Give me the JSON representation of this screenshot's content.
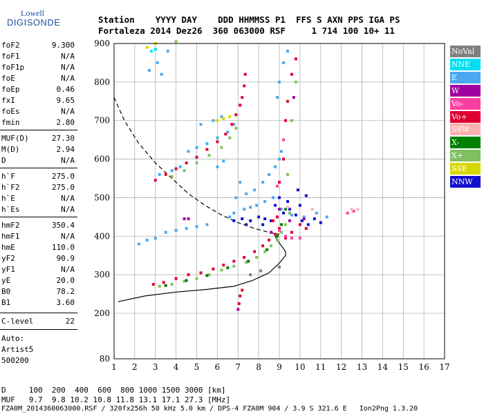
{
  "logo": {
    "line1": "Lowell",
    "line2": "DIGISONDE"
  },
  "header": {
    "row1": "Station    YYYY DAY    DDD HHMMSS P1  FFS S AXN PPS IGA PS",
    "row2": "Fortaleza 2014 Dez26  360 063000 RSF     1 714 100 10+ 11"
  },
  "params": [
    {
      "k": "foF2",
      "v": "9.300"
    },
    {
      "k": "foF1",
      "v": "N/A"
    },
    {
      "k": "foF1p",
      "v": "N/A"
    },
    {
      "k": "foE",
      "v": "N/A"
    },
    {
      "k": "foEp",
      "v": "0.46"
    },
    {
      "k": "fxI",
      "v": "9.65"
    },
    {
      "k": "foEs",
      "v": "N/A"
    },
    {
      "k": "fmin",
      "v": "2.80"
    },
    {
      "k": "MUF(D)",
      "v": "27.30"
    },
    {
      "k": "M(D)",
      "v": "2.94"
    },
    {
      "k": "D",
      "v": "N/A"
    },
    {
      "k": "h`F",
      "v": "275.0"
    },
    {
      "k": "h`F2",
      "v": "275.0"
    },
    {
      "k": "h`E",
      "v": "N/A"
    },
    {
      "k": "h`Es",
      "v": "N/A"
    },
    {
      "k": "hmF2",
      "v": "350.4"
    },
    {
      "k": "hmF1",
      "v": "N/A"
    },
    {
      "k": "hmE",
      "v": "110.0"
    },
    {
      "k": "yF2",
      "v": "90.9"
    },
    {
      "k": "yF1",
      "v": "N/A"
    },
    {
      "k": "yE",
      "v": "20.0"
    },
    {
      "k": "B0",
      "v": "78.2"
    },
    {
      "k": "B1",
      "v": "3.60"
    },
    {
      "k": "C-level",
      "v": "22"
    }
  ],
  "auto": {
    "line1": "Auto:",
    "line2": "Artist5",
    "line3": "500200"
  },
  "legend": [
    {
      "label": "NoVal",
      "bg": "#808080",
      "fg": "#ffffff"
    },
    {
      "label": "NNE",
      "bg": "#00e0f0",
      "fg": "#ffffff"
    },
    {
      "label": "E",
      "bg": "#4aa8f0",
      "fg": "#ffffff"
    },
    {
      "label": "W",
      "bg": "#a000a0",
      "fg": "#ffffff"
    },
    {
      "label": "Vo-",
      "bg": "#ff40a0",
      "fg": "#ffffff"
    },
    {
      "label": "Vo+",
      "bg": "#e00030",
      "fg": "#ffffff"
    },
    {
      "label": "SSW",
      "bg": "#ffb0b0",
      "fg": "#ffffff"
    },
    {
      "label": "X-",
      "bg": "#008000",
      "fg": "#ffffff"
    },
    {
      "label": "X+",
      "bg": "#80c060",
      "fg": "#ffffff"
    },
    {
      "label": "SSE",
      "bg": "#d8d800",
      "fg": "#ffffff"
    },
    {
      "label": "NNW",
      "bg": "#1010d0",
      "fg": "#ffffff"
    }
  ],
  "footer": {
    "line1": "D     100  200  400  600  800 1000 1500 3000 [km]",
    "line2": "MUF   9.7  9.8 10.2 10.8 11.8 13.1 17.1 27.3 [MHz]",
    "line3": "FZA0M_2014360063000.RSF / 320fx256h 50 kHz 5.0 km / DPS-4 FZA0M 904 / 3.9 S 321.6 E   Ion2Png 1.3.20"
  },
  "chart_data": {
    "type": "scatter",
    "title": "",
    "xlabel": "",
    "ylabel": "",
    "xlim": [
      1,
      17
    ],
    "ylim": [
      80,
      900
    ],
    "x_ticks": [
      1,
      2,
      3,
      4,
      5,
      6,
      7,
      8,
      9,
      10,
      11,
      12,
      13,
      14,
      15,
      16,
      17
    ],
    "y_ticks": [
      80,
      200,
      300,
      400,
      500,
      600,
      700,
      800,
      900
    ],
    "grid": true,
    "series": [
      {
        "name": "E",
        "color": "#4aa8f0",
        "points": [
          [
            2.2,
            380
          ],
          [
            2.6,
            390
          ],
          [
            3.0,
            395
          ],
          [
            3.5,
            410
          ],
          [
            4.0,
            415
          ],
          [
            4.5,
            420
          ],
          [
            5.0,
            425
          ],
          [
            5.5,
            430
          ],
          [
            3.2,
            560
          ],
          [
            3.8,
            570
          ],
          [
            4.2,
            580
          ],
          [
            4.6,
            620
          ],
          [
            5.0,
            630
          ],
          [
            5.5,
            640
          ],
          [
            6.0,
            655
          ],
          [
            6.5,
            670
          ],
          [
            6.8,
            690
          ],
          [
            5.2,
            690
          ],
          [
            5.8,
            700
          ],
          [
            6.2,
            710
          ],
          [
            6.9,
            500
          ],
          [
            7.4,
            510
          ],
          [
            7.8,
            520
          ],
          [
            8.2,
            540
          ],
          [
            8.5,
            560
          ],
          [
            8.8,
            580
          ],
          [
            9.0,
            600
          ],
          [
            9.1,
            620
          ],
          [
            6.6,
            450
          ],
          [
            6.8,
            460
          ],
          [
            7.3,
            470
          ],
          [
            7.6,
            475
          ],
          [
            7.9,
            480
          ],
          [
            8.3,
            490
          ],
          [
            8.7,
            500
          ],
          [
            9.1,
            470
          ],
          [
            9.6,
            455
          ],
          [
            10.2,
            450
          ],
          [
            10.8,
            460
          ],
          [
            11.3,
            450
          ],
          [
            2.7,
            830
          ],
          [
            3.1,
            850
          ],
          [
            3.6,
            880
          ],
          [
            3.3,
            820
          ],
          [
            6.0,
            580
          ],
          [
            6.3,
            595
          ],
          [
            7.1,
            540
          ],
          [
            8.9,
            760
          ],
          [
            9.0,
            800
          ],
          [
            9.2,
            850
          ],
          [
            9.4,
            880
          ]
        ]
      },
      {
        "name": "NNW",
        "color": "#1010d0",
        "points": [
          [
            6.8,
            440
          ],
          [
            7.2,
            445
          ],
          [
            7.6,
            440
          ],
          [
            8.0,
            450
          ],
          [
            8.3,
            445
          ],
          [
            8.6,
            440
          ],
          [
            8.9,
            450
          ],
          [
            9.2,
            460
          ],
          [
            9.5,
            470
          ],
          [
            9.8,
            455
          ],
          [
            10.1,
            440
          ],
          [
            10.4,
            430
          ],
          [
            10.7,
            445
          ],
          [
            11.0,
            435
          ],
          [
            9.0,
            500
          ],
          [
            8.8,
            480
          ],
          [
            9.4,
            490
          ],
          [
            10.0,
            480
          ],
          [
            7.4,
            430
          ],
          [
            8.2,
            430
          ],
          [
            9.9,
            520
          ],
          [
            10.3,
            505
          ]
        ]
      },
      {
        "name": "Vo+",
        "color": "#e00030",
        "points": [
          [
            2.9,
            275
          ],
          [
            3.4,
            280
          ],
          [
            4.0,
            290
          ],
          [
            4.6,
            300
          ],
          [
            5.2,
            305
          ],
          [
            5.8,
            315
          ],
          [
            6.3,
            325
          ],
          [
            6.8,
            335
          ],
          [
            7.3,
            345
          ],
          [
            7.8,
            360
          ],
          [
            8.2,
            375
          ],
          [
            8.5,
            390
          ],
          [
            8.8,
            405
          ],
          [
            9.0,
            420
          ],
          [
            3.0,
            545
          ],
          [
            3.5,
            560
          ],
          [
            4.0,
            575
          ],
          [
            4.5,
            590
          ],
          [
            5.0,
            605
          ],
          [
            5.5,
            625
          ],
          [
            6.0,
            645
          ],
          [
            6.4,
            665
          ],
          [
            6.7,
            690
          ],
          [
            6.9,
            715
          ],
          [
            7.1,
            740
          ],
          [
            7.2,
            760
          ],
          [
            7.3,
            790
          ],
          [
            7.35,
            820
          ],
          [
            8.7,
            440
          ],
          [
            8.9,
            450
          ],
          [
            9.0,
            540
          ],
          [
            9.2,
            600
          ],
          [
            9.3,
            700
          ],
          [
            9.4,
            750
          ],
          [
            9.6,
            820
          ],
          [
            9.8,
            860
          ],
          [
            10.0,
            430
          ],
          [
            10.3,
            420
          ],
          [
            9.3,
            395
          ],
          [
            9.6,
            410
          ],
          [
            7.1,
            245
          ],
          [
            7.2,
            260
          ],
          [
            7.05,
            225
          ]
        ]
      },
      {
        "name": "X+",
        "color": "#80c060",
        "points": [
          [
            3.2,
            270
          ],
          [
            3.8,
            275
          ],
          [
            4.4,
            283
          ],
          [
            5.0,
            290
          ],
          [
            5.6,
            300
          ],
          [
            6.2,
            312
          ],
          [
            6.8,
            322
          ],
          [
            7.4,
            332
          ],
          [
            7.9,
            345
          ],
          [
            8.3,
            360
          ],
          [
            8.6,
            375
          ],
          [
            8.9,
            390
          ],
          [
            9.1,
            410
          ],
          [
            9.3,
            430
          ],
          [
            3.8,
            555
          ],
          [
            4.4,
            570
          ],
          [
            5.0,
            590
          ],
          [
            5.6,
            610
          ],
          [
            6.2,
            630
          ],
          [
            6.6,
            655
          ],
          [
            6.9,
            680
          ],
          [
            9.5,
            460
          ],
          [
            9.4,
            560
          ],
          [
            9.6,
            700
          ],
          [
            9.8,
            800
          ],
          [
            4.0,
            905
          ]
        ]
      },
      {
        "name": "X-",
        "color": "#008000",
        "points": [
          [
            3.5,
            272
          ],
          [
            4.5,
            285
          ],
          [
            5.5,
            298
          ],
          [
            6.5,
            318
          ],
          [
            7.5,
            335
          ],
          [
            8.4,
            365
          ],
          [
            8.9,
            400
          ],
          [
            9.1,
            430
          ],
          [
            9.3,
            470
          ]
        ]
      },
      {
        "name": "Vo-",
        "color": "#ff40a0",
        "points": [
          [
            9.0,
            415
          ],
          [
            9.3,
            400
          ],
          [
            9.6,
            395
          ],
          [
            10.0,
            395
          ],
          [
            12.3,
            460
          ],
          [
            12.6,
            465
          ],
          [
            8.9,
            530
          ],
          [
            9.2,
            650
          ]
        ]
      },
      {
        "name": "W",
        "color": "#a000a0",
        "points": [
          [
            4.4,
            445
          ],
          [
            4.6,
            445
          ],
          [
            9.0,
            470
          ],
          [
            9.5,
            440
          ],
          [
            10.2,
            445
          ],
          [
            8.6,
            410
          ],
          [
            9.7,
            760
          ],
          [
            7.0,
            210
          ]
        ]
      },
      {
        "name": "SSE",
        "color": "#d8d800",
        "points": [
          [
            2.6,
            890
          ],
          [
            3.0,
            900
          ],
          [
            6.0,
            700
          ],
          [
            6.3,
            705
          ],
          [
            6.6,
            710
          ]
        ]
      },
      {
        "name": "SSW",
        "color": "#ffb0b0",
        "points": [
          [
            12.5,
            470
          ],
          [
            12.8,
            470
          ],
          [
            9.4,
            475
          ],
          [
            10.6,
            470
          ]
        ]
      },
      {
        "name": "NNE",
        "color": "#00e0f0",
        "points": [
          [
            2.8,
            880
          ],
          [
            3.0,
            885
          ]
        ]
      },
      {
        "name": "NoVal",
        "color": "#808080",
        "points": [
          [
            7.6,
            300
          ],
          [
            8.1,
            310
          ],
          [
            9.0,
            320
          ]
        ]
      }
    ],
    "curves": [
      {
        "style": "dashed",
        "points": [
          [
            1.0,
            760
          ],
          [
            1.5,
            700
          ],
          [
            2.2,
            640
          ],
          [
            3.0,
            590
          ],
          [
            3.8,
            550
          ],
          [
            4.6,
            510
          ],
          [
            5.4,
            480
          ],
          [
            6.2,
            455
          ],
          [
            7.0,
            435
          ],
          [
            7.8,
            420
          ],
          [
            8.5,
            410
          ],
          [
            9.0,
            405
          ]
        ]
      },
      {
        "style": "solid",
        "points": [
          [
            1.2,
            230
          ],
          [
            2.5,
            245
          ],
          [
            4.0,
            255
          ],
          [
            5.5,
            262
          ],
          [
            6.8,
            270
          ],
          [
            7.7,
            285
          ],
          [
            8.5,
            305
          ],
          [
            9.0,
            330
          ],
          [
            9.3,
            350
          ],
          [
            9.3,
            360
          ],
          [
            9.1,
            375
          ],
          [
            8.9,
            390
          ],
          [
            8.8,
            400
          ]
        ]
      }
    ]
  }
}
